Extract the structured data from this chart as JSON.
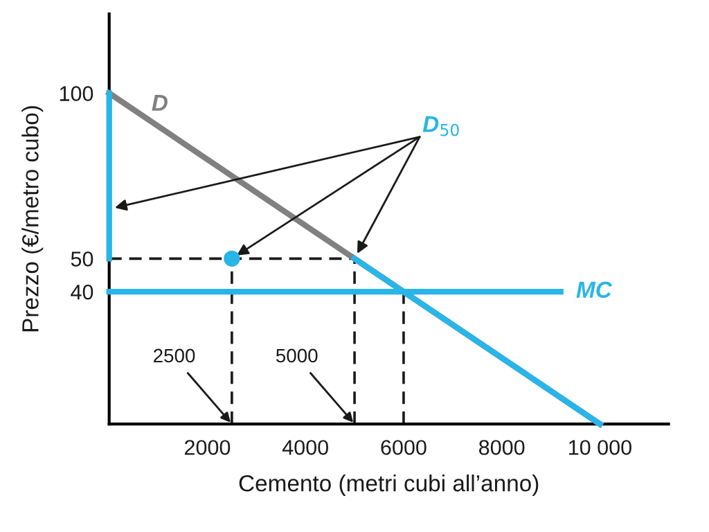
{
  "chart_data": {
    "type": "line",
    "xlabel": "Cemento (metri cubi all’anno)",
    "ylabel": "Prezzo (€/metro cubo)",
    "xlim": [
      0,
      11400
    ],
    "ylim": [
      0,
      124
    ],
    "xticks": [
      2000,
      4000,
      6000,
      8000,
      {
        "value": 10000,
        "label": "10 000"
      }
    ],
    "yticks": [
      40,
      50,
      100
    ],
    "grid": false,
    "legend": false,
    "series": [
      {
        "name": "D",
        "color": "#808080",
        "x": [
          0,
          10000
        ],
        "values": [
          100,
          0
        ]
      },
      {
        "name": "D$_{50}$",
        "color": "#29b5e8",
        "x": [
          0,
          0,
          null,
          2500,
          null,
          5000,
          10000
        ],
        "values": [
          100,
          50,
          null,
          50,
          null,
          50,
          0
        ]
      },
      {
        "name": "MC",
        "color": "#29b5e8",
        "x": [
          0,
          9200
        ],
        "values": [
          40,
          40
        ]
      },
      {
        "color": "#1a1a1a",
        "line_style": "dashed",
        "x": [
          0,
          5000
        ],
        "values": [
          50,
          50
        ]
      },
      {
        "color": "#1a1a1a",
        "line_style": "dashed",
        "x": [
          2500,
          2500
        ],
        "values": [
          0,
          50
        ]
      },
      {
        "color": "#1a1a1a",
        "line_style": "dashed",
        "x": [
          5000,
          5000
        ],
        "values": [
          0,
          50
        ]
      },
      {
        "color": "#1a1a1a",
        "line_style": "dashed",
        "x": [
          6000,
          6000
        ],
        "values": [
          0,
          40
        ]
      }
    ],
    "annotations": [
      {
        "text": "2500",
        "x": 2500,
        "y": 0
      },
      {
        "text": "5000",
        "x": 5000,
        "y": 0
      }
    ]
  }
}
